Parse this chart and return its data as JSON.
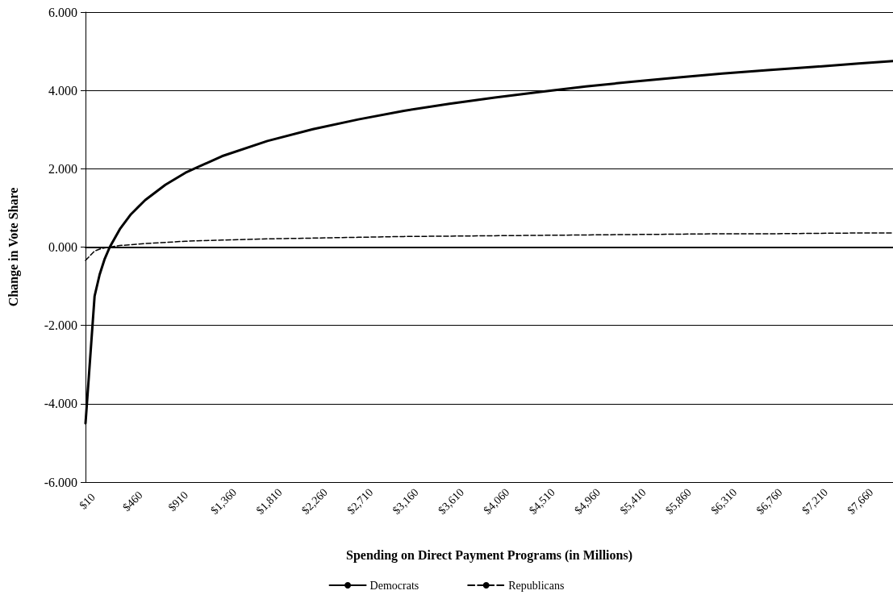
{
  "chart_data": {
    "type": "line",
    "xlabel": "Spending on Direct Payment Programs (in Millions)",
    "ylabel": "Change in Vote Share",
    "x": [
      10,
      100,
      150,
      200,
      250,
      350,
      460,
      600,
      800,
      1000,
      1360,
      1810,
      2260,
      2710,
      3160,
      3610,
      4060,
      4510,
      4960,
      5410,
      5860,
      6310,
      6760,
      7210,
      7660,
      8000
    ],
    "series": [
      {
        "name": "Democrats",
        "color": "#000000",
        "line_style": "solid",
        "values": [
          -4.5,
          -1.25,
          -0.7,
          -0.3,
          0,
          0.46,
          0.84,
          1.2,
          1.59,
          1.9,
          2.32,
          2.71,
          3.01,
          3.26,
          3.48,
          3.66,
          3.82,
          3.96,
          4.1,
          4.22,
          4.33,
          4.43,
          4.52,
          4.6,
          4.69,
          4.75
        ]
      },
      {
        "name": "Republicans",
        "color": "#000000",
        "line_style": "dashed",
        "values": [
          -0.34,
          -0.1,
          -0.05,
          -0.02,
          0,
          0.04,
          0.06,
          0.09,
          0.12,
          0.15,
          0.18,
          0.21,
          0.23,
          0.25,
          0.27,
          0.28,
          0.29,
          0.3,
          0.31,
          0.32,
          0.33,
          0.34,
          0.34,
          0.35,
          0.36,
          0.36
        ]
      }
    ],
    "xlim": [
      10,
      8000
    ],
    "xticks": [
      {
        "value": 10,
        "label": "$10"
      },
      {
        "value": 460,
        "label": "$460"
      },
      {
        "value": 910,
        "label": "$910"
      },
      {
        "value": 1360,
        "label": "$1,360"
      },
      {
        "value": 1810,
        "label": "$1,810"
      },
      {
        "value": 2260,
        "label": "$2,260"
      },
      {
        "value": 2710,
        "label": "$2,710"
      },
      {
        "value": 3160,
        "label": "$3,160"
      },
      {
        "value": 3610,
        "label": "$3,610"
      },
      {
        "value": 4060,
        "label": "$4,060"
      },
      {
        "value": 4510,
        "label": "$4,510"
      },
      {
        "value": 4960,
        "label": "$4,960"
      },
      {
        "value": 5410,
        "label": "$5,410"
      },
      {
        "value": 5860,
        "label": "$5,860"
      },
      {
        "value": 6310,
        "label": "$6,310"
      },
      {
        "value": 6760,
        "label": "$6,760"
      },
      {
        "value": 7210,
        "label": "$7,210"
      },
      {
        "value": 7660,
        "label": "$7,660"
      }
    ],
    "ylim": [
      -6,
      6
    ],
    "yticks": [
      {
        "value": -6,
        "label": "-6.000"
      },
      {
        "value": -4,
        "label": "-4.000"
      },
      {
        "value": -2,
        "label": "-2.000"
      },
      {
        "value": 0,
        "label": "0.000"
      },
      {
        "value": 2,
        "label": "2.000"
      },
      {
        "value": 4,
        "label": "4.000"
      },
      {
        "value": 6,
        "label": "6.000"
      }
    ],
    "grid": "y",
    "legend": "bottom",
    "marker": "none"
  }
}
